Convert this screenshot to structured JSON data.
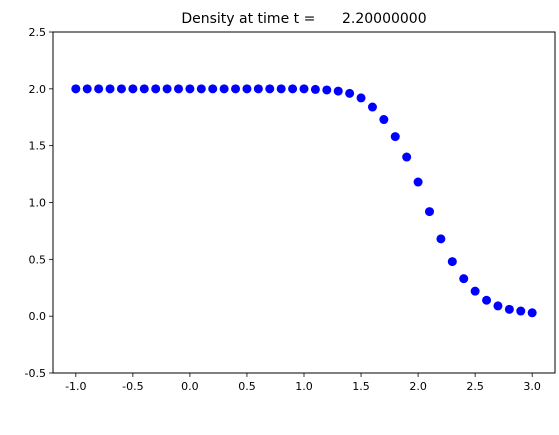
{
  "chart_data": {
    "type": "scatter",
    "title": "Density at time t =      2.20000000",
    "xlabel": "",
    "ylabel": "",
    "xlim": [
      -1.2,
      3.2
    ],
    "ylim": [
      -0.5,
      2.5
    ],
    "x_ticks": [
      "-1.0",
      "-0.5",
      "0.0",
      "0.5",
      "1.0",
      "1.5",
      "2.0",
      "2.5",
      "3.0"
    ],
    "y_ticks": [
      "-0.5",
      "0.0",
      "0.5",
      "1.0",
      "1.5",
      "2.0",
      "2.5"
    ],
    "grid": false,
    "marker_color": "#0000ff",
    "series": [
      {
        "x": [
          -1.0,
          -0.9,
          -0.8,
          -0.7,
          -0.6,
          -0.5,
          -0.4,
          -0.3,
          -0.2,
          -0.1,
          0.0,
          0.1,
          0.2,
          0.3,
          0.4,
          0.5,
          0.6,
          0.7,
          0.8,
          0.9,
          1.0,
          1.1,
          1.2,
          1.3,
          1.4,
          1.5,
          1.6,
          1.7,
          1.8,
          1.9,
          2.0,
          2.1,
          2.2,
          2.3,
          2.4,
          2.5,
          2.6,
          2.7,
          2.8,
          2.9,
          3.0
        ],
        "y": [
          2.0,
          2.0,
          2.0,
          2.0,
          2.0,
          2.0,
          2.0,
          2.0,
          2.0,
          2.0,
          2.0,
          2.0,
          2.0,
          2.0,
          2.0,
          2.0,
          2.0,
          2.0,
          2.0,
          2.0,
          2.0,
          1.995,
          1.99,
          1.98,
          1.96,
          1.92,
          1.84,
          1.73,
          1.58,
          1.4,
          1.18,
          0.92,
          0.68,
          0.48,
          0.33,
          0.22,
          0.14,
          0.09,
          0.06,
          0.045,
          0.03
        ]
      }
    ]
  }
}
